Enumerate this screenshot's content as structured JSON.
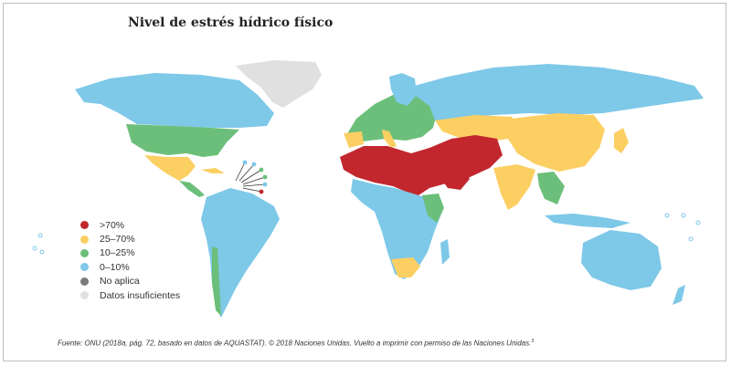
{
  "title": "Nivel de estrés hídrico físico",
  "legend": [
    {
      "label": ">70%",
      "color": "#c1272d"
    },
    {
      "label": "25–70%",
      "color": "#fccf63"
    },
    {
      "label": "10–25%",
      "color": "#6cbf7a"
    },
    {
      "label": "0–10%",
      "color": "#7ec8e8"
    },
    {
      "label": "No aplica",
      "color": "#7a7a7a"
    },
    {
      "label": "Datos insuficientes",
      "color": "#e0e0e0"
    }
  ],
  "source": "Fuente: ONU (2018a, pág. 72, basado en datos de AQUASTAT). © 2018 Naciones Unidas. Vuelto a imprimir con permiso de las Naciones Unidas.",
  "source_note": "3"
}
